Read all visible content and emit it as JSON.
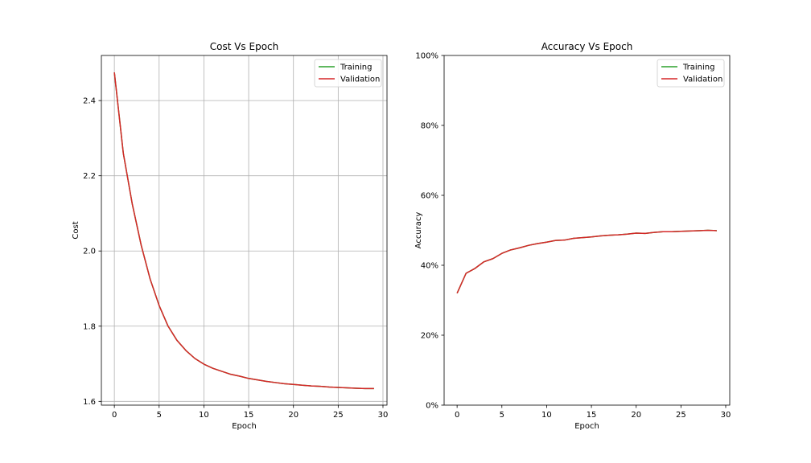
{
  "colors": {
    "training": "#2ca02c",
    "validation": "#d62728",
    "grid": "#b0b0b0",
    "axes": "#000000",
    "background": "#ffffff"
  },
  "chart_data": [
    {
      "type": "line",
      "title": "Cost Vs Epoch",
      "xlabel": "Epoch",
      "ylabel": "Cost",
      "xlim": [
        -1.45,
        30.45
      ],
      "ylim": [
        1.59,
        2.52
      ],
      "xticks": [
        0,
        5,
        10,
        15,
        20,
        25,
        30
      ],
      "xtick_labels": [
        "0",
        "5",
        "10",
        "15",
        "20",
        "25",
        "30"
      ],
      "yticks": [
        1.6,
        1.8,
        2.0,
        2.2,
        2.4
      ],
      "ytick_labels": [
        "1.6",
        "1.8",
        "2.0",
        "2.2",
        "2.4"
      ],
      "grid": true,
      "legend_position": "top-right",
      "x": [
        0,
        1,
        2,
        3,
        4,
        5,
        6,
        7,
        8,
        9,
        10,
        11,
        12,
        13,
        14,
        15,
        16,
        17,
        18,
        19,
        20,
        21,
        22,
        23,
        24,
        25,
        26,
        27,
        28,
        29
      ],
      "series": [
        {
          "name": "Training",
          "color_key": "training",
          "values": [
            2.475,
            2.26,
            2.125,
            2.015,
            1.925,
            1.855,
            1.8,
            1.762,
            1.735,
            1.714,
            1.699,
            1.688,
            1.68,
            1.672,
            1.667,
            1.661,
            1.657,
            1.653,
            1.65,
            1.647,
            1.645,
            1.643,
            1.641,
            1.64,
            1.638,
            1.637,
            1.636,
            1.635,
            1.634,
            1.634
          ]
        },
        {
          "name": "Validation",
          "color_key": "validation",
          "values": [
            2.475,
            2.26,
            2.125,
            2.015,
            1.925,
            1.855,
            1.8,
            1.762,
            1.735,
            1.714,
            1.699,
            1.688,
            1.68,
            1.672,
            1.667,
            1.661,
            1.657,
            1.653,
            1.65,
            1.647,
            1.645,
            1.643,
            1.641,
            1.64,
            1.638,
            1.637,
            1.636,
            1.635,
            1.634,
            1.634
          ]
        }
      ]
    },
    {
      "type": "line",
      "title": "Accuracy Vs Epoch",
      "xlabel": "Epoch",
      "ylabel": "Accuracy",
      "xlim": [
        -1.45,
        30.45
      ],
      "ylim": [
        0,
        1
      ],
      "xticks": [
        0,
        5,
        10,
        15,
        20,
        25,
        30
      ],
      "xtick_labels": [
        "0",
        "5",
        "10",
        "15",
        "20",
        "25",
        "30"
      ],
      "yticks": [
        0,
        0.2,
        0.4,
        0.6,
        0.8,
        1.0
      ],
      "ytick_labels": [
        "0%",
        "20%",
        "40%",
        "60%",
        "80%",
        "100%"
      ],
      "grid": false,
      "legend_position": "top-right",
      "x": [
        0,
        1,
        2,
        3,
        4,
        5,
        6,
        7,
        8,
        9,
        10,
        11,
        12,
        13,
        14,
        15,
        16,
        17,
        18,
        19,
        20,
        21,
        22,
        23,
        24,
        25,
        26,
        27,
        28,
        29
      ],
      "series": [
        {
          "name": "Training",
          "color_key": "training",
          "values": [
            0.32,
            0.377,
            0.391,
            0.41,
            0.419,
            0.434,
            0.444,
            0.45,
            0.457,
            0.462,
            0.466,
            0.471,
            0.472,
            0.477,
            0.479,
            0.481,
            0.484,
            0.486,
            0.487,
            0.489,
            0.492,
            0.491,
            0.494,
            0.496,
            0.496,
            0.497,
            0.498,
            0.499,
            0.5,
            0.499
          ]
        },
        {
          "name": "Validation",
          "color_key": "validation",
          "values": [
            0.32,
            0.377,
            0.391,
            0.41,
            0.419,
            0.434,
            0.444,
            0.45,
            0.457,
            0.462,
            0.466,
            0.471,
            0.472,
            0.477,
            0.479,
            0.481,
            0.484,
            0.486,
            0.487,
            0.489,
            0.492,
            0.491,
            0.494,
            0.496,
            0.496,
            0.497,
            0.498,
            0.499,
            0.5,
            0.499
          ]
        }
      ]
    }
  ]
}
